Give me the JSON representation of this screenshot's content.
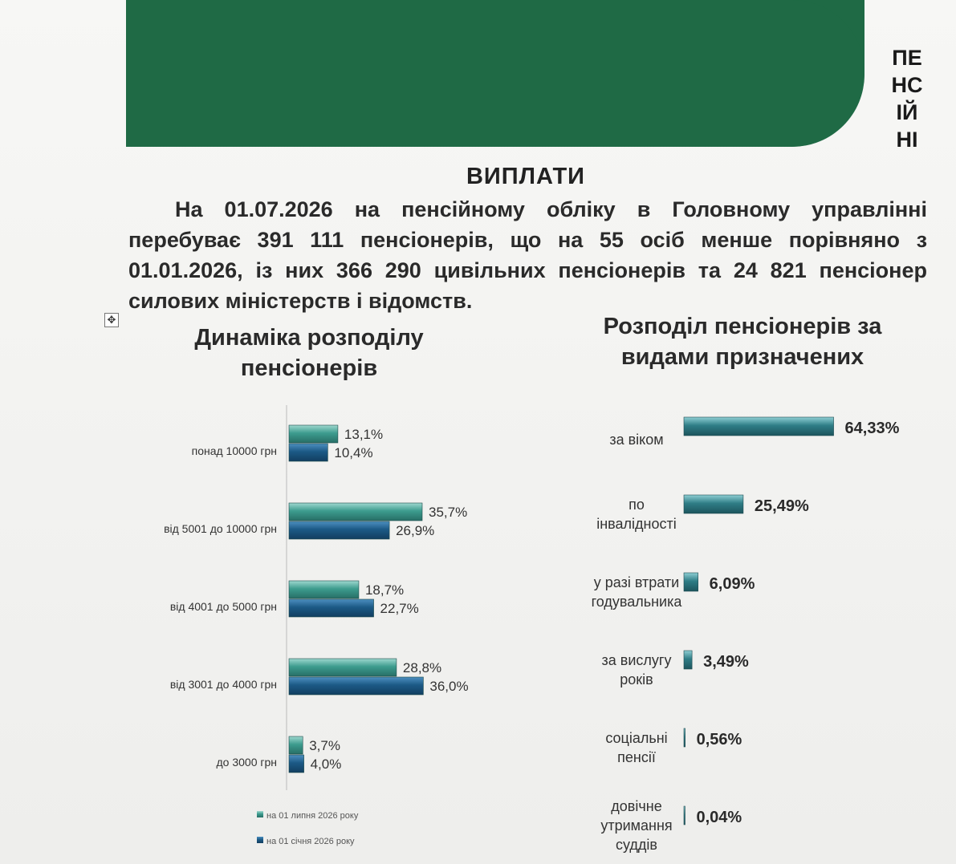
{
  "header": {
    "vertical_title_lines": [
      "ПЕ",
      "НС",
      "ІЙ",
      "НІ"
    ],
    "heading": "ВИПЛАТИ"
  },
  "intro": {
    "text": "На 01.07.2026 на пенсійному обліку в Головному управлінні перебуває 391 111 пенсіонерів, що на 55 осіб менше порівняно з 01.01.2026, із них 366 290 цивільних пенсіонерів та 24 821 пенсіонер силових міністерств і відомств."
  },
  "colors": {
    "banner": "#1f6a45",
    "series_light": "#3d9c8e",
    "series_dark": "#1c5a86",
    "right_bars": "#2f7d86"
  },
  "chart_data": [
    {
      "type": "bar",
      "orientation": "horizontal",
      "title": "Динаміка розподілу пенсіонерів",
      "categories": [
        "понад 10000 грн",
        "від 5001 до 10000 грн",
        "від 4001 до 5000 грн",
        "від 3001 до 4000 грн",
        "до 3000 грн"
      ],
      "series": [
        {
          "name": "на 01 липня 2026 року",
          "values": [
            13.1,
            35.7,
            18.7,
            28.8,
            3.7
          ],
          "labels": [
            "13,1%",
            "35,7%",
            "18,7%",
            "28,8%",
            "3,7%"
          ]
        },
        {
          "name": "на 01 січня 2026 року",
          "values": [
            10.4,
            26.9,
            22.7,
            36.0,
            4.0
          ],
          "labels": [
            "10,4%",
            "26,9%",
            "22,7%",
            "36,0%",
            "4,0%"
          ]
        }
      ],
      "xlim": [
        0,
        40
      ],
      "legend": "bottom-left"
    },
    {
      "type": "bar",
      "orientation": "horizontal",
      "title": "Розподіл пенсіонерів за видами призначених",
      "categories": [
        [
          "за віком"
        ],
        [
          "по",
          "інвалідності"
        ],
        [
          "у разі втрати",
          "годувальника"
        ],
        [
          "за вислугу",
          "років"
        ],
        [
          "соціальні",
          "пенсії"
        ],
        [
          "довічне",
          "утримання",
          "суддів"
        ]
      ],
      "values": [
        64.33,
        25.49,
        6.09,
        3.49,
        0.56,
        0.04
      ],
      "labels": [
        "64,33%",
        "25,49%",
        "6,09%",
        "3,49%",
        "0,56%",
        "0,04%"
      ],
      "xlim": [
        0,
        70
      ]
    }
  ]
}
